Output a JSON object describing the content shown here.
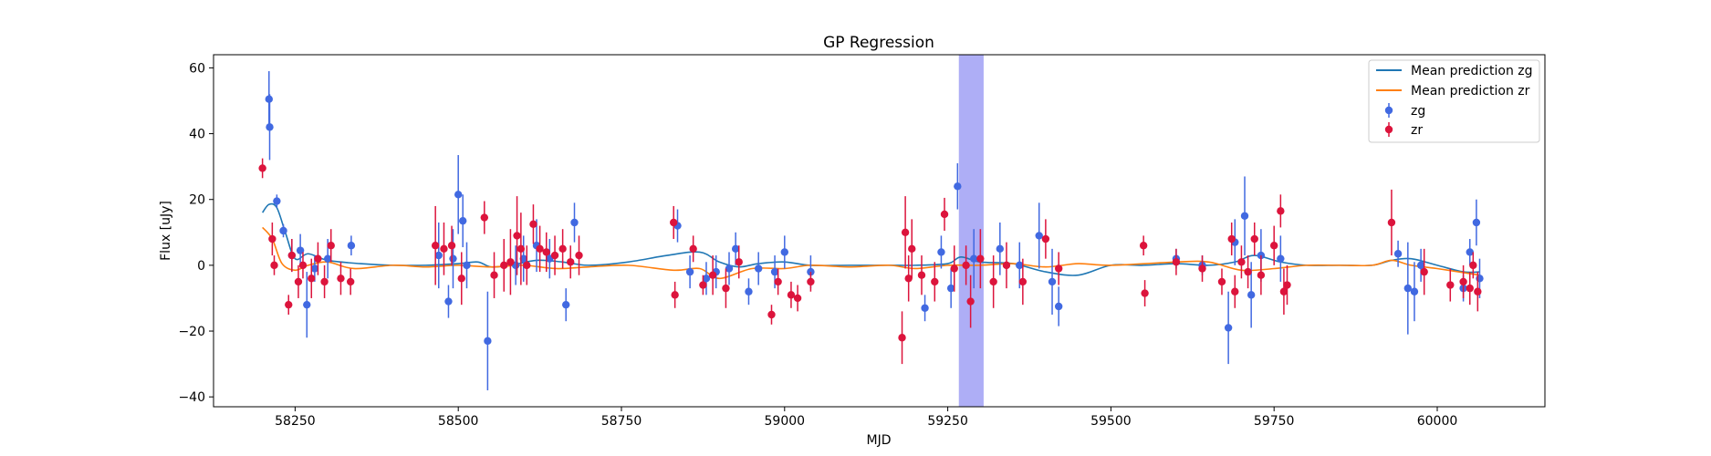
{
  "chart_data": {
    "type": "scatter",
    "title": "GP Regression",
    "xlabel": "MJD",
    "ylabel": "Flux [uJy]",
    "xlim": [
      58125,
      60165
    ],
    "ylim": [
      -43,
      64
    ],
    "xticks": [
      58250,
      58500,
      58750,
      59000,
      59250,
      59500,
      59750,
      60000
    ],
    "yticks": [
      -40,
      -20,
      0,
      20,
      40,
      60
    ],
    "grid": false,
    "legend_position": "top-right",
    "shaded_region": {
      "x_start": 59267,
      "x_end": 59305,
      "color": "#aaaaf5"
    },
    "series": [
      {
        "name": "Mean prediction zg",
        "kind": "line",
        "color": "#1f77b4",
        "x": [
          58200,
          58210,
          58222,
          58235,
          58250,
          58270,
          58300,
          58350,
          58400,
          58450,
          58500,
          58530,
          58550,
          58580,
          58620,
          58660,
          58700,
          58760,
          58820,
          58870,
          58900,
          58930,
          58960,
          59000,
          59040,
          59100,
          59160,
          59200,
          59250,
          59270,
          59300,
          59350,
          59400,
          59450,
          59500,
          59550,
          59600,
          59650,
          59690,
          59720,
          59760,
          59800,
          59850,
          59900,
          59930,
          59960,
          60000,
          60040,
          60065
        ],
        "y": [
          16,
          18.5,
          17.5,
          10,
          2,
          3.5,
          1.5,
          0.5,
          0,
          0,
          0.5,
          1,
          -0.5,
          0,
          1.5,
          1,
          0,
          1,
          3,
          4,
          1,
          -0.5,
          0.5,
          1,
          0,
          0,
          0,
          0,
          0.5,
          2.5,
          1,
          0.5,
          -2,
          -3,
          0,
          0,
          0.5,
          0,
          1,
          3,
          1,
          0,
          0,
          0,
          1.5,
          2,
          0,
          -2,
          -2
        ]
      },
      {
        "name": "Mean prediction zr",
        "kind": "line",
        "color": "#ff7f0e",
        "x": [
          58200,
          58215,
          58230,
          58250,
          58270,
          58300,
          58340,
          58400,
          58450,
          58500,
          58550,
          58600,
          58650,
          58700,
          58760,
          58830,
          58870,
          58900,
          58950,
          59000,
          59040,
          59100,
          59160,
          59200,
          59250,
          59300,
          59350,
          59400,
          59450,
          59500,
          59600,
          59650,
          59700,
          59750,
          59800,
          59850,
          59900,
          59930,
          59960,
          60000,
          60065
        ],
        "y": [
          11.5,
          8,
          0.5,
          -1.5,
          0,
          1,
          -1,
          0,
          -0.5,
          0,
          -0.5,
          0,
          -1,
          -0.5,
          0,
          -1.5,
          -1,
          -4,
          -1,
          -1,
          0,
          -0.5,
          0,
          -1,
          0,
          0,
          0.5,
          -0.5,
          0.5,
          0,
          1,
          1,
          -1.5,
          -1,
          0,
          0,
          0,
          1.5,
          0,
          -1,
          -3
        ]
      },
      {
        "name": "zg",
        "kind": "errorbar",
        "color": "#4169e1",
        "x": [
          58210,
          58211,
          58222,
          58232,
          58245,
          58258,
          58268,
          58280,
          58300,
          58336,
          58470,
          58485,
          58492,
          58500,
          58507,
          58513,
          58545,
          58588,
          58600,
          58620,
          58640,
          58665,
          58678,
          58836,
          58855,
          58880,
          58895,
          58915,
          58925,
          58945,
          58960,
          58985,
          59000,
          59040,
          59215,
          59240,
          59255,
          59265,
          59290,
          59330,
          59360,
          59390,
          59410,
          59420,
          59600,
          59640,
          59680,
          59690,
          59705,
          59715,
          59730,
          59760,
          59940,
          59955,
          59965,
          59975,
          60040,
          60050,
          60060,
          60065
        ],
        "y": [
          50.5,
          42,
          19.5,
          10.5,
          3,
          4.5,
          -12,
          -1,
          2,
          6,
          3,
          -11,
          2,
          21.5,
          13.5,
          0,
          -23,
          0,
          2,
          6,
          2,
          -12,
          13,
          12,
          -2,
          -4,
          -2,
          -1,
          5,
          -8,
          -1,
          -2,
          4,
          -2,
          -13,
          4,
          -7,
          24,
          2,
          5,
          0,
          9,
          -5,
          -12.5,
          2,
          0,
          -19,
          7,
          15,
          -9,
          3,
          2,
          3.5,
          -7,
          -8,
          0,
          -7,
          4,
          13,
          -4
        ],
        "err": [
          8.5,
          10,
          2,
          2,
          5,
          5,
          10,
          4,
          6,
          3,
          10,
          5,
          9,
          12,
          8,
          7,
          15,
          6,
          7,
          8,
          6,
          5,
          6,
          5,
          5,
          5,
          5,
          5,
          5,
          4,
          5,
          5,
          5,
          5,
          4,
          5,
          6,
          7,
          9,
          8,
          7,
          10,
          10,
          6,
          3,
          3,
          11,
          7,
          12,
          10,
          8,
          7,
          4,
          14,
          9,
          5,
          4,
          4,
          7,
          6
        ]
      },
      {
        "name": "zr",
        "kind": "errorbar",
        "color": "#dc143c",
        "x": [
          58200,
          58215,
          58218,
          58240,
          58245,
          58255,
          58262,
          58275,
          58285,
          58295,
          58305,
          58320,
          58335,
          58465,
          58478,
          58490,
          58505,
          58540,
          58555,
          58570,
          58580,
          58590,
          58596,
          58605,
          58615,
          58625,
          58635,
          58648,
          58660,
          58672,
          58685,
          58830,
          58832,
          58860,
          58875,
          58890,
          58910,
          58930,
          58980,
          58990,
          59010,
          59020,
          59040,
          59180,
          59185,
          59190,
          59195,
          59210,
          59230,
          59245,
          59260,
          59278,
          59285,
          59300,
          59320,
          59340,
          59365,
          59400,
          59420,
          59550,
          59552,
          59600,
          59640,
          59670,
          59685,
          59690,
          59700,
          59710,
          59720,
          59730,
          59750,
          59760,
          59765,
          59770,
          59930,
          59980,
          60020,
          60040,
          60050,
          60055,
          60062
        ],
        "y": [
          29.5,
          8,
          0,
          -12,
          3,
          -5,
          0,
          -4,
          2,
          -5,
          6,
          -4,
          -5,
          6,
          5,
          6,
          -4,
          14.5,
          -3,
          0,
          1,
          9,
          5,
          0,
          12.5,
          5,
          4,
          3,
          5,
          1,
          3,
          13,
          -9,
          5,
          -6,
          -3,
          -7,
          1,
          -15,
          -5,
          -9,
          -10,
          -5,
          -22,
          10,
          -4,
          5,
          -3,
          -5,
          15.5,
          -1,
          0,
          -11,
          2,
          -5,
          0,
          -5,
          8,
          -1,
          6,
          -8.5,
          1,
          -1,
          -5,
          8,
          -8,
          1,
          -2,
          8,
          -3,
          6,
          16.5,
          -8,
          -6,
          13,
          -2,
          -6,
          -5,
          -7,
          0,
          -8
        ],
        "err": [
          3,
          5,
          3,
          3,
          5,
          5,
          4,
          6,
          5,
          5,
          5,
          5,
          4,
          12,
          8,
          6,
          8,
          5,
          7,
          8,
          10,
          12,
          11,
          6,
          6,
          7,
          6,
          6,
          6,
          5,
          6,
          5,
          4,
          4,
          3,
          6,
          6,
          5,
          3,
          4,
          4,
          4,
          3,
          8,
          11,
          7,
          9,
          6,
          6,
          5,
          7,
          6,
          8,
          9,
          8,
          7,
          7,
          6,
          5,
          3,
          4,
          4,
          4,
          4,
          5,
          5,
          5,
          5,
          5,
          6,
          6,
          5,
          7,
          6,
          10,
          7,
          5,
          5,
          5,
          4,
          6
        ]
      }
    ]
  }
}
